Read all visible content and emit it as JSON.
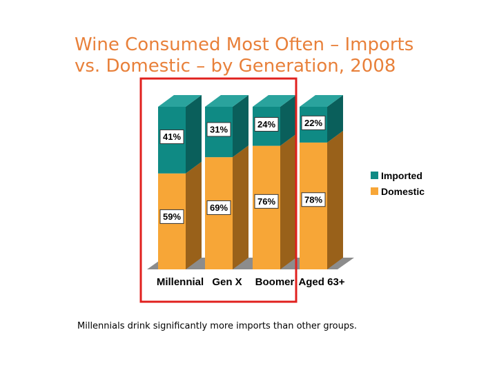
{
  "title_lines": [
    "Wine Consumed Most Often – Imports",
    "vs. Domestic – by Generation, 2008"
  ],
  "caption": "Millennials drink significantly more imports than other groups.",
  "colors": {
    "title": "#E8803A",
    "imported_front": "#0F8A84",
    "imported_side": "#0A5F5B",
    "imported_top": "#2AA39D",
    "domestic_front": "#F7A637",
    "domestic_side": "#99611A",
    "domestic_top": "#F9BC64",
    "floor": "#8C8C8C",
    "highlight": "#E0201E"
  },
  "chart_data": {
    "type": "bar",
    "stacked": true,
    "three_d": true,
    "title": "Wine Consumed Most Often – Imports vs. Domestic – by Generation, 2008",
    "categories": [
      "Millennial",
      "Gen X",
      "Boomer",
      "Aged 63+"
    ],
    "series": [
      {
        "name": "Domestic",
        "values": [
          59,
          69,
          76,
          78
        ],
        "labels": [
          "59%",
          "69%",
          "76%",
          "78%"
        ]
      },
      {
        "name": "Imported",
        "values": [
          41,
          31,
          24,
          22
        ],
        "labels": [
          "41%",
          "31%",
          "24%",
          "22%"
        ]
      }
    ],
    "legend": [
      {
        "name": "Imported",
        "color_key": "imported_front"
      },
      {
        "name": "Domestic",
        "color_key": "domestic_front"
      }
    ],
    "ylim": [
      0,
      100
    ],
    "grid": false,
    "legend_position": "right",
    "highlighted_categories": [
      "Millennial",
      "Gen X",
      "Boomer"
    ]
  }
}
